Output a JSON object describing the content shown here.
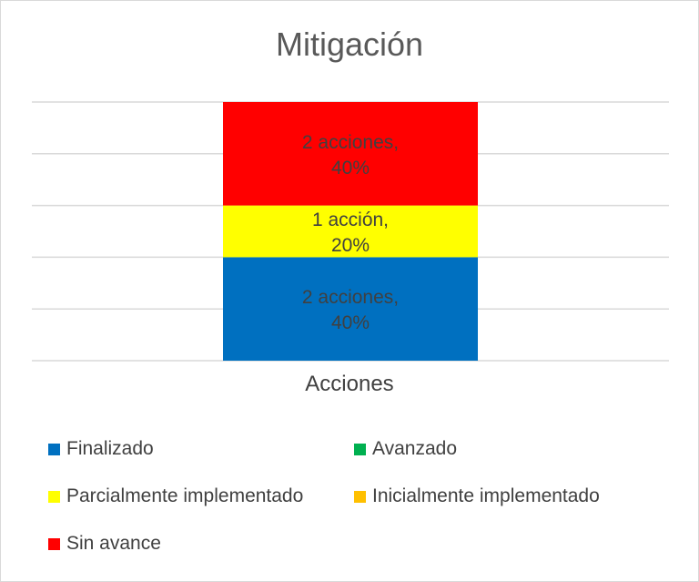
{
  "chart_data": {
    "type": "bar",
    "stacked": true,
    "percent_stacked": true,
    "title": "Mitigación",
    "categories": [
      "Acciones"
    ],
    "ylim": [
      0,
      100
    ],
    "grid": true,
    "legend_position": "bottom",
    "series": [
      {
        "name": "Finalizado",
        "values": [
          40
        ],
        "color": "#0070C0",
        "label_line1": "2 acciones,",
        "label_line2": "40%"
      },
      {
        "name": "Avanzado",
        "values": [
          0
        ],
        "color": "#00B050"
      },
      {
        "name": "Parcialmente implementado",
        "values": [
          20
        ],
        "color": "#FFFF00",
        "label_line1": "1 acción,",
        "label_line2": "20%"
      },
      {
        "name": "Inicialmente implementado",
        "values": [
          0
        ],
        "color": "#FFC000"
      },
      {
        "name": "Sin avance",
        "values": [
          40
        ],
        "color": "#FF0000",
        "label_line1": "2 acciones,",
        "label_line2": "40%"
      }
    ]
  }
}
